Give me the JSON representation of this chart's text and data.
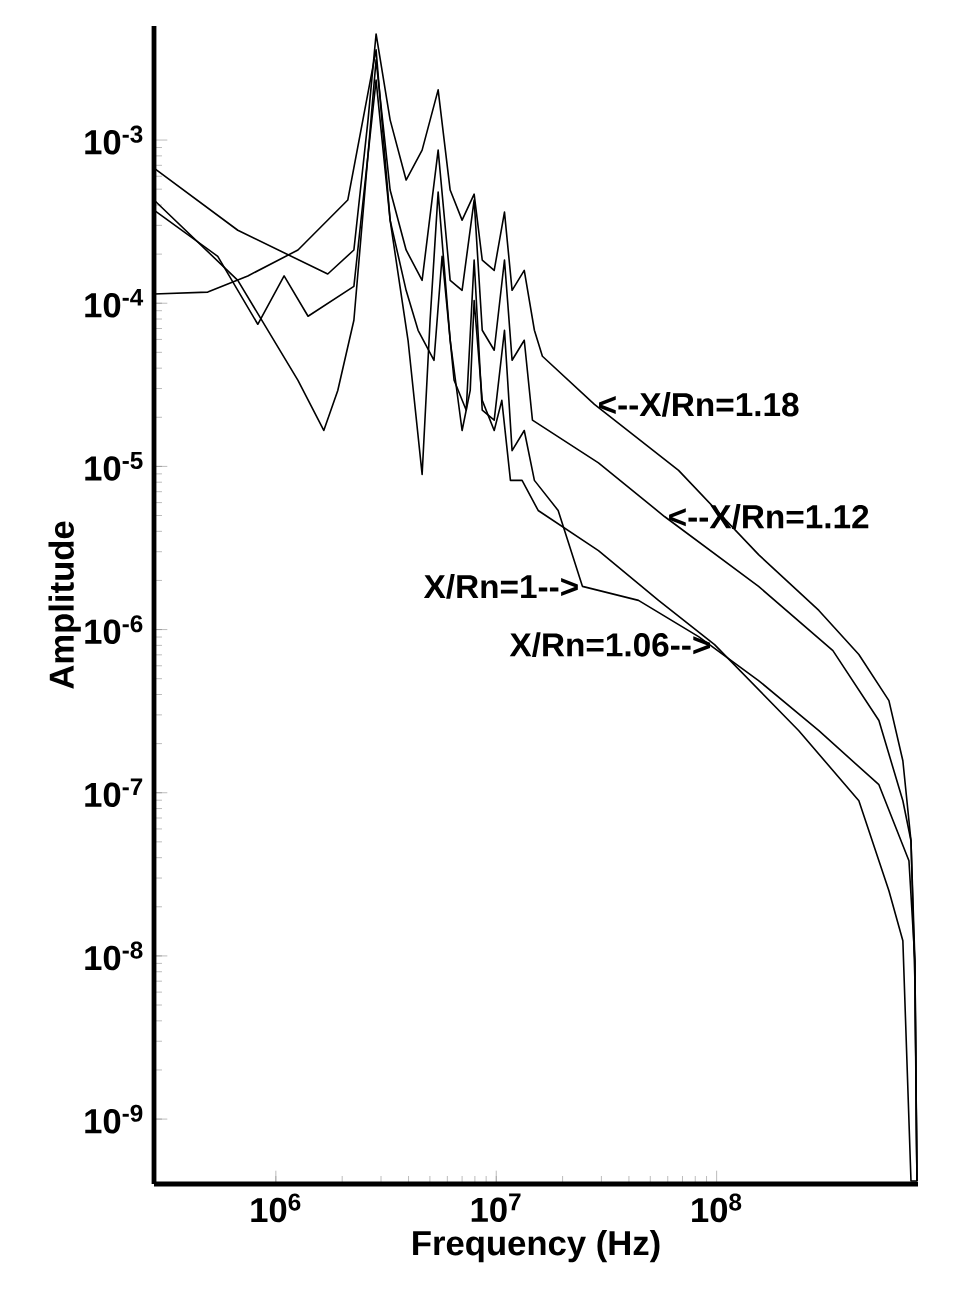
{
  "chart_data": {
    "type": "line",
    "xlabel": "Frequency (Hz)",
    "ylabel": "Amplitude",
    "log": "xy",
    "xlim": [
      280000.0,
      820000000.0
    ],
    "ylim": [
      4e-10,
      0.005
    ],
    "xticks": [
      {
        "value": 1000000.0,
        "label": "10$^{6}$"
      },
      {
        "value": 10000000.0,
        "label": "10$^{7}$"
      },
      {
        "value": 100000000.0,
        "label": "10$^{8}$"
      }
    ],
    "yticks": [
      {
        "value": 1e-09,
        "label": "10$^{-9}$"
      },
      {
        "value": 1e-08,
        "label": "10$^{-8}$"
      },
      {
        "value": 1e-07,
        "label": "10$^{-7}$"
      },
      {
        "value": 1e-06,
        "label": "10$^{-6}$"
      },
      {
        "value": 1e-05,
        "label": "10$^{-5}$"
      },
      {
        "value": 0.0001,
        "label": "10$^{-4}$"
      },
      {
        "value": 0.001,
        "label": "10$^{-3}$"
      }
    ],
    "series": [
      {
        "color": "#000000",
        "x": [
          280000.0,
          672000.0,
          1720000.0,
          2260000.0,
          2620000.0,
          2850000.0,
          3300000.0,
          3900000.0,
          4610000.0,
          5450000.0,
          6180000.0,
          7000000.0,
          7940000.0,
          8640000.0,
          9790000.0,
          10900000.0,
          11800000.0,
          13400000.0,
          14900000.0,
          16200000.0,
          27900000.0,
          67200000.0,
          155000000.0,
          291000000.0,
          442000000.0,
          605000000.0,
          700000000.0,
          762000000.0,
          794000000.0,
          811000000.0
        ],
        "values": [
          0.000673,
          0.00028,
          0.000151,
          0.000212,
          0.00133,
          0.00447,
          0.00133,
          0.000569,
          0.000868,
          0.00203,
          0.000494,
          0.000323,
          0.000466,
          0.000184,
          0.000159,
          0.000362,
          0.00012,
          0.000159,
          6.83e-05,
          4.73e-05,
          2.4e-05,
          9.45e-06,
          2.88e-06,
          1.31e-06,
          7.03e-07,
          3.67e-07,
          1.57e-07,
          5.08e-08,
          9.31e-09,
          4.17e-10
        ]
      },
      {
        "color": "#000000",
        "x": [
          280000.0,
          672000.0,
          1260000.0,
          1650000.0,
          1910000.0,
          2260000.0,
          2850000.0,
          3300000.0,
          3900000.0,
          4610000.0,
          5450000.0,
          6180000.0,
          7000000.0,
          7940000.0,
          8640000.0,
          9790000.0,
          10900000.0,
          11800000.0,
          13400000.0,
          14600000.0,
          29100000.0,
          58000000.0,
          155000000.0,
          337000000.0,
          545000000.0,
          700000000.0,
          762000000.0,
          794000000.0,
          811000000.0
        ],
        "values": [
          0.000429,
          0.000138,
          3.37e-05,
          1.66e-05,
          2.92e-05,
          7.87e-05,
          0.0031,
          0.000494,
          0.000212,
          0.000138,
          0.000868,
          0.000138,
          0.00012,
          0.000429,
          6.83e-05,
          5.15e-05,
          0.000184,
          4.47e-05,
          5.93e-05,
          1.92e-05,
          1.05e-05,
          4.93e-06,
          1.84e-06,
          7.43e-07,
          2.77e-07,
          8.93e-08,
          5.08e-08,
          7.03e-09,
          4.17e-10
        ]
      },
      {
        "color": "#000000",
        "x": [
          280000.0,
          545000.0,
          828000.0,
          1090000.0,
          1400000.0,
          2260000.0,
          2850000.0,
          3300000.0,
          3900000.0,
          4420000.0,
          5220000.0,
          5680000.0,
          6440000.0,
          7310000.0,
          7940000.0,
          8640000.0,
          9790000.0,
          10900000.0,
          11800000.0,
          13400000.0,
          14900000.0,
          19100000.0,
          24600000.0,
          44200000.0,
          82800000.0,
          155000000.0,
          291000000.0,
          545000000.0,
          746000000.0,
          794000000.0,
          811000000.0
        ],
        "values": [
          0.000372,
          0.000194,
          7.43e-05,
          0.000147,
          8.32e-05,
          0.000127,
          0.00233,
          0.000323,
          0.00012,
          6.83e-05,
          4.47e-05,
          0.000194,
          3.37e-05,
          2.21e-05,
          0.000184,
          2.21e-05,
          1.92e-05,
          6.83e-05,
          1.25e-05,
          1.66e-05,
          8.21e-06,
          5.37e-06,
          1.84e-06,
          1.51e-06,
          9.06e-07,
          4.87e-07,
          2.4e-07,
          1.12e-07,
          3.83e-08,
          9.31e-09,
          4.17e-10
        ]
      },
      {
        "color": "#000000",
        "x": [
          280000.0,
          491000.0,
          746000.0,
          1260000.0,
          2120000.0,
          2850000.0,
          3300000.0,
          3980000.0,
          4610000.0,
          5010000.0,
          5450000.0,
          6180000.0,
          7000000.0,
          7620000.0,
          7940000.0,
          8640000.0,
          9790000.0,
          10600000.0,
          11600000.0,
          13100000.0,
          15500000.0,
          29100000.0,
          54500000.0,
          97900000.0,
          236000000.0,
          442000000.0,
          605000000.0,
          700000000.0,
          762000000.0,
          811000000.0
        ],
        "values": [
          0.000114,
          0.000117,
          0.000147,
          0.000212,
          0.000429,
          0.00357,
          0.000323,
          5.93e-05,
          8.93e-06,
          7.87e-05,
          0.00048,
          5.93e-05,
          1.66e-05,
          2.92e-05,
          0.000104,
          2.54e-05,
          1.66e-05,
          2.54e-05,
          8.21e-06,
          8.21e-06,
          5.37e-06,
          3.05e-06,
          1.51e-06,
          8.09e-07,
          2.4e-07,
          8.93e-08,
          2.51e-08,
          1.24e-08,
          4.17e-10,
          4.17e-10
        ]
      }
    ],
    "annotations": [
      {
        "text": "<--X/Rn=1.18",
        "x": 27900000.0,
        "y": 2.4e-05
      },
      {
        "text": "<--X/Rn=1.12",
        "x": 58000000.0,
        "y": 4.93e-06
      },
      {
        "text": "X/Rn=1-->",
        "x": 24600000.0,
        "y": 1.84e-06
      },
      {
        "text": "X/Rn=1.06-->",
        "x": 97900000.0,
        "y": 8.09e-07
      }
    ]
  }
}
